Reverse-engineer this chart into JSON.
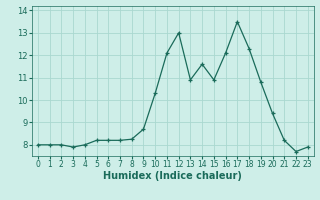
{
  "x": [
    0,
    1,
    2,
    3,
    4,
    5,
    6,
    7,
    8,
    9,
    10,
    11,
    12,
    13,
    14,
    15,
    16,
    17,
    18,
    19,
    20,
    21,
    22,
    23
  ],
  "y": [
    8.0,
    8.0,
    8.0,
    7.9,
    8.0,
    8.2,
    8.2,
    8.2,
    8.25,
    8.7,
    10.3,
    12.1,
    13.0,
    10.9,
    11.6,
    10.9,
    12.1,
    13.5,
    12.3,
    10.8,
    9.4,
    8.2,
    7.7,
    7.9
  ],
  "line_color": "#1a6b5a",
  "marker": "+",
  "marker_size": 3,
  "xlabel": "Humidex (Indice chaleur)",
  "xlim": [
    -0.5,
    23.5
  ],
  "ylim": [
    7.5,
    14.2
  ],
  "yticks": [
    8,
    9,
    10,
    11,
    12,
    13,
    14
  ],
  "xticks": [
    0,
    1,
    2,
    3,
    4,
    5,
    6,
    7,
    8,
    9,
    10,
    11,
    12,
    13,
    14,
    15,
    16,
    17,
    18,
    19,
    20,
    21,
    22,
    23
  ],
  "grid_color": "#aad8d0",
  "background_color": "#ceeee8",
  "tick_color": "#1a6b5a",
  "xlabel_fontsize": 7,
  "xlabel_fontweight": "bold",
  "ytick_fontsize": 6,
  "xtick_fontsize": 5.5
}
